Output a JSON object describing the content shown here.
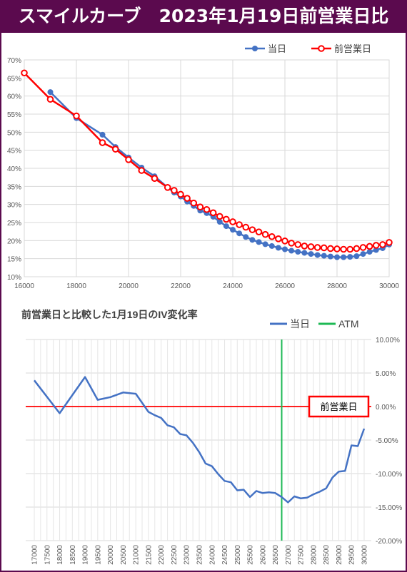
{
  "header": {
    "title": "スマイルカーブ　2023年1月19日前営業日比",
    "bg": "#5b0a4e"
  },
  "chart_data": [
    {
      "type": "line",
      "title": "",
      "xlabel": "",
      "ylabel": "",
      "xlim": [
        16000,
        30000
      ],
      "ylim": [
        0.1,
        0.7
      ],
      "x_ticks": [
        "16000",
        "18000",
        "20000",
        "22000",
        "24000",
        "26000",
        "28000",
        "30000"
      ],
      "y_ticks": [
        "10%",
        "15%",
        "20%",
        "25%",
        "30%",
        "35%",
        "40%",
        "45%",
        "50%",
        "55%",
        "60%",
        "65%",
        "70%"
      ],
      "grid": true,
      "legend": "top-right",
      "series": [
        {
          "name": "当日",
          "color": "#4472c4",
          "points": [
            [
              17000,
              0.611
            ],
            [
              18000,
              0.539
            ],
            [
              19000,
              0.493
            ],
            [
              19500,
              0.459
            ],
            [
              20000,
              0.43
            ],
            [
              20500,
              0.402
            ],
            [
              21000,
              0.378
            ],
            [
              21500,
              0.347
            ],
            [
              21750,
              0.333
            ],
            [
              22000,
              0.322
            ],
            [
              22250,
              0.308
            ],
            [
              22500,
              0.296
            ],
            [
              22750,
              0.283
            ],
            [
              23000,
              0.276
            ],
            [
              23250,
              0.266
            ],
            [
              23500,
              0.252
            ],
            [
              23750,
              0.24
            ],
            [
              24000,
              0.23
            ],
            [
              24250,
              0.22
            ],
            [
              24500,
              0.21
            ],
            [
              24750,
              0.202
            ],
            [
              25000,
              0.196
            ],
            [
              25250,
              0.19
            ],
            [
              25500,
              0.185
            ],
            [
              25750,
              0.18
            ],
            [
              26000,
              0.176
            ],
            [
              26250,
              0.172
            ],
            [
              26500,
              0.169
            ],
            [
              26750,
              0.166
            ],
            [
              27000,
              0.163
            ],
            [
              27250,
              0.16
            ],
            [
              27500,
              0.158
            ],
            [
              27750,
              0.156
            ],
            [
              28000,
              0.154
            ],
            [
              28250,
              0.154
            ],
            [
              28500,
              0.155
            ],
            [
              28750,
              0.157
            ],
            [
              29000,
              0.163
            ],
            [
              29250,
              0.169
            ],
            [
              29500,
              0.174
            ],
            [
              29750,
              0.179
            ],
            [
              30000,
              0.189
            ]
          ]
        },
        {
          "name": "前営業日",
          "color": "#ff0000",
          "points": [
            [
              16000,
              0.664
            ],
            [
              17000,
              0.591
            ],
            [
              18000,
              0.545
            ],
            [
              19000,
              0.471
            ],
            [
              19500,
              0.453
            ],
            [
              20000,
              0.424
            ],
            [
              20500,
              0.394
            ],
            [
              21000,
              0.372
            ],
            [
              21500,
              0.347
            ],
            [
              21750,
              0.339
            ],
            [
              22000,
              0.328
            ],
            [
              22250,
              0.317
            ],
            [
              22500,
              0.304
            ],
            [
              22750,
              0.293
            ],
            [
              23000,
              0.286
            ],
            [
              23250,
              0.277
            ],
            [
              23500,
              0.267
            ],
            [
              23750,
              0.259
            ],
            [
              24000,
              0.252
            ],
            [
              24250,
              0.244
            ],
            [
              24500,
              0.237
            ],
            [
              24750,
              0.23
            ],
            [
              25000,
              0.224
            ],
            [
              25250,
              0.217
            ],
            [
              25500,
              0.211
            ],
            [
              25750,
              0.205
            ],
            [
              26000,
              0.199
            ],
            [
              26250,
              0.193
            ],
            [
              26500,
              0.189
            ],
            [
              26750,
              0.185
            ],
            [
              27000,
              0.183
            ],
            [
              27250,
              0.181
            ],
            [
              27500,
              0.18
            ],
            [
              27750,
              0.178
            ],
            [
              28000,
              0.177
            ],
            [
              28250,
              0.176
            ],
            [
              28500,
              0.176
            ],
            [
              28750,
              0.178
            ],
            [
              29000,
              0.181
            ],
            [
              29250,
              0.184
            ],
            [
              29500,
              0.187
            ],
            [
              29750,
              0.189
            ],
            [
              30000,
              0.195
            ]
          ]
        }
      ]
    },
    {
      "type": "line",
      "title": "前営業日と比較した1月19日のIV変化率",
      "xlabel": "",
      "ylabel": "",
      "ylim": [
        -0.2,
        0.1
      ],
      "y_ticks": [
        "10.00%",
        "5.00%",
        "0.00%",
        "-5.00%",
        "-10.00%",
        "-15.00%",
        "-20.00%"
      ],
      "categories": [
        "17000",
        "17500",
        "18000",
        "18500",
        "19000",
        "19500",
        "20000",
        "20500",
        "21000",
        "21500",
        "22000",
        "22500",
        "23000",
        "23500",
        "24000",
        "24500",
        "25000",
        "25500",
        "26000",
        "26500",
        "27000",
        "27500",
        "28000",
        "28500",
        "29000",
        "29500",
        "30000"
      ],
      "grid": true,
      "legend": "top-right",
      "series": [
        {
          "name": "当日",
          "color": "#4472c4",
          "points": [
            [
              17000,
              0.039
            ],
            [
              18000,
              -0.01
            ],
            [
              19000,
              0.044
            ],
            [
              19500,
              0.01
            ],
            [
              20000,
              0.014
            ],
            [
              20500,
              0.021
            ],
            [
              21000,
              0.019
            ],
            [
              21500,
              -0.008
            ],
            [
              21750,
              -0.013
            ],
            [
              22000,
              -0.017
            ],
            [
              22250,
              -0.028
            ],
            [
              22500,
              -0.031
            ],
            [
              22750,
              -0.041
            ],
            [
              23000,
              -0.043
            ],
            [
              23250,
              -0.054
            ],
            [
              23500,
              -0.068
            ],
            [
              23750,
              -0.085
            ],
            [
              24000,
              -0.089
            ],
            [
              24250,
              -0.101
            ],
            [
              24500,
              -0.111
            ],
            [
              24750,
              -0.113
            ],
            [
              25000,
              -0.125
            ],
            [
              25250,
              -0.124
            ],
            [
              25500,
              -0.135
            ],
            [
              25750,
              -0.126
            ],
            [
              26000,
              -0.129
            ],
            [
              26250,
              -0.128
            ],
            [
              26500,
              -0.129
            ],
            [
              26750,
              -0.135
            ],
            [
              27000,
              -0.143
            ],
            [
              27250,
              -0.134
            ],
            [
              27500,
              -0.137
            ],
            [
              27750,
              -0.136
            ],
            [
              28000,
              -0.131
            ],
            [
              28250,
              -0.127
            ],
            [
              28500,
              -0.122
            ],
            [
              28750,
              -0.106
            ],
            [
              29000,
              -0.097
            ],
            [
              29250,
              -0.096
            ],
            [
              29500,
              -0.058
            ],
            [
              29750,
              -0.059
            ],
            [
              30000,
              -0.033
            ]
          ]
        }
      ],
      "atm": {
        "name": "ATM",
        "x": 26750,
        "color": "#1db954"
      },
      "reference": {
        "label": "前営業日",
        "y": 0.0,
        "color": "#ff0000"
      }
    }
  ]
}
